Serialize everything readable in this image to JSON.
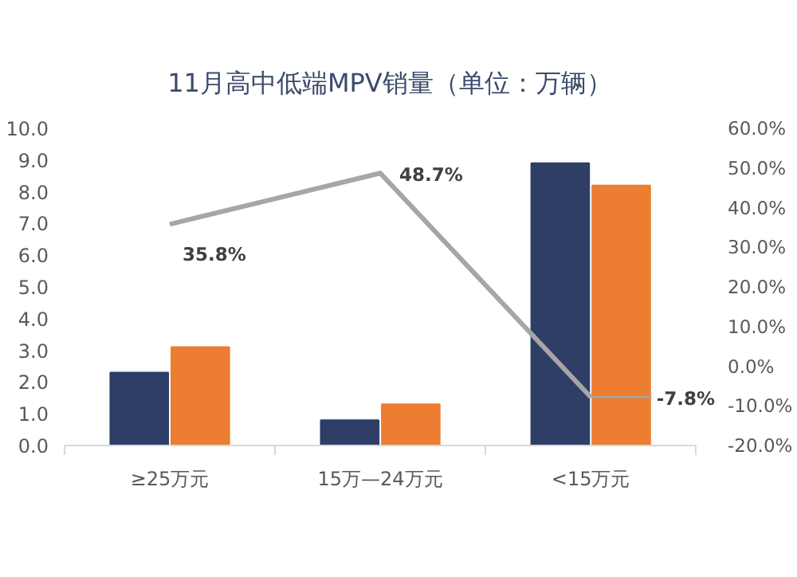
{
  "chart_data": {
    "type": "bar",
    "title": "11月高中低端MPV销量（单位：万辆）",
    "categories": [
      "≥25万元",
      "15万—24万元",
      "<15万元"
    ],
    "series": [
      {
        "color": "#2e3e66",
        "values": [
          2.3,
          0.8,
          8.9
        ]
      },
      {
        "color": "#ed7d31",
        "values": [
          3.1,
          1.3,
          8.2
        ]
      },
      {
        "type": "line",
        "axis": "y2",
        "color": "#a6a6a6",
        "values": [
          35.8,
          48.7,
          -7.8
        ],
        "value_labels": [
          "35.8%",
          "48.7%",
          "-7.8%"
        ]
      }
    ],
    "ylim": [
      0,
      10
    ],
    "yticks": [
      {
        "value": 0,
        "label": "0.0"
      },
      {
        "value": 1,
        "label": "1.0"
      },
      {
        "value": 2,
        "label": "2.0"
      },
      {
        "value": 3,
        "label": "3.0"
      },
      {
        "value": 4,
        "label": "4.0"
      },
      {
        "value": 5,
        "label": "5.0"
      },
      {
        "value": 6,
        "label": "6.0"
      },
      {
        "value": 7,
        "label": "7.0"
      },
      {
        "value": 8,
        "label": "8.0"
      },
      {
        "value": 9,
        "label": "9.0"
      },
      {
        "value": 10,
        "label": "10.0"
      }
    ],
    "y2lim": [
      -20,
      60
    ],
    "y2ticks": [
      {
        "value": -20,
        "label": "-20.0%"
      },
      {
        "value": -10,
        "label": "-10.0%"
      },
      {
        "value": 0,
        "label": "0.0%"
      },
      {
        "value": 10,
        "label": "10.0%"
      },
      {
        "value": 20,
        "label": "20.0%"
      },
      {
        "value": 30,
        "label": "30.0%"
      },
      {
        "value": 40,
        "label": "40.0%"
      },
      {
        "value": 50,
        "label": "50.0%"
      },
      {
        "value": 60,
        "label": "60.0%"
      }
    ],
    "grid": false
  }
}
